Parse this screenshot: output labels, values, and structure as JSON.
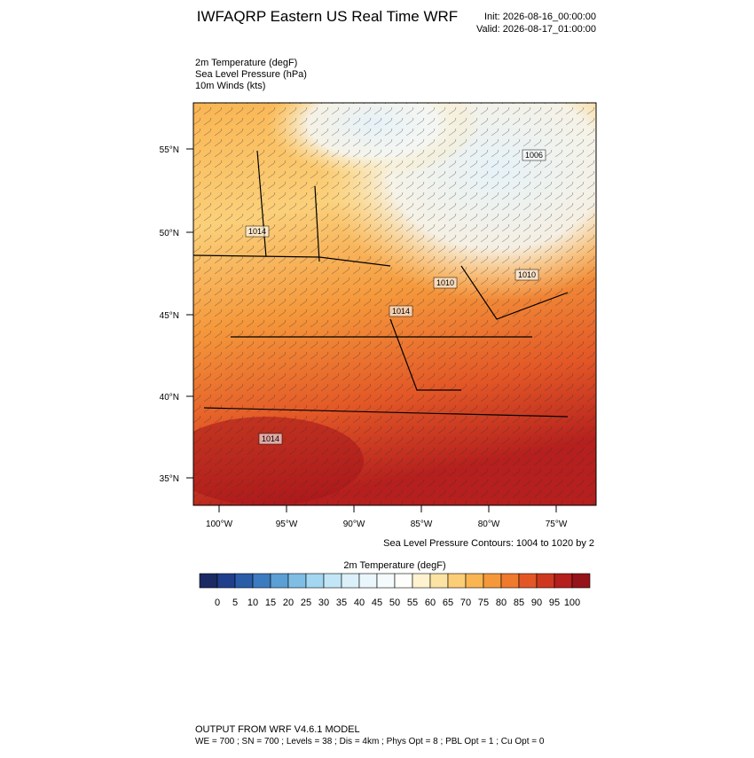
{
  "header": {
    "title": "IWFAQRP Eastern US Real Time WRF",
    "init": "Init: 2026-08-16_00:00:00",
    "valid": "Valid: 2026-08-17_01:00:00"
  },
  "fields": [
    "2m Temperature   (degF)",
    "Sea Level Pressure   (hPa)",
    "10m Winds   (kts)"
  ],
  "map": {
    "lat_labels": [
      "55°N",
      "50°N",
      "45°N",
      "40°N",
      "35°N"
    ],
    "lon_labels": [
      "100°W",
      "95°W",
      "90°W",
      "85°W",
      "80°W",
      "75°W"
    ],
    "pressure_labels": [
      "1006",
      "1010",
      "1010",
      "1014",
      "1014",
      "1014"
    ],
    "contour_note": "Sea Level Pressure Contours: 1004 to 1020 by 2"
  },
  "colorbar": {
    "title": "2m Temperature  (degF)",
    "colors": [
      "#1b2a62",
      "#1f3f8c",
      "#2a5ca8",
      "#3b7bc0",
      "#5b9fd4",
      "#7fbde4",
      "#a3d6f0",
      "#c2e6f6",
      "#dbf0f9",
      "#eaf6fb",
      "#f5fafc",
      "#fdfdfb",
      "#fff2cf",
      "#fde3a3",
      "#fbcd76",
      "#f9b552",
      "#f5983b",
      "#ef792d",
      "#e35726",
      "#cf3820",
      "#b51f1d",
      "#951419"
    ],
    "ticks": [
      0,
      5,
      10,
      15,
      20,
      25,
      30,
      35,
      40,
      45,
      50,
      55,
      60,
      65,
      70,
      75,
      80,
      85,
      90,
      95,
      100
    ]
  },
  "footer": [
    "OUTPUT FROM WRF V4.6.1 MODEL",
    "WE = 700 ; SN = 700 ; Levels = 38 ; Dis = 4km ; Phys Opt = 8 ; PBL Opt = 1 ; Cu Opt = 0"
  ]
}
